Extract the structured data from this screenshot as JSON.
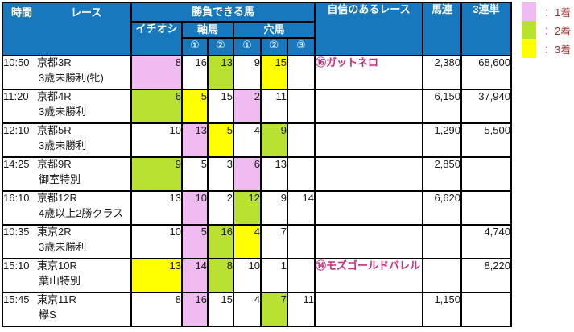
{
  "colors": {
    "header": "#1878BE",
    "first": "#F0BBF0",
    "second": "#B9E132",
    "third": "#FFFF00",
    "conf": "#C5317E",
    "legend": "#953735"
  },
  "header": {
    "time": "時間",
    "race": "レース",
    "winnable": "勝負できる馬",
    "ichioshi": "イチオシ",
    "jiku": "軸馬",
    "ana": "穴馬",
    "c1": "①",
    "c2": "②",
    "c3": "③",
    "confidence": "自信のあるレース",
    "umaren": "馬連",
    "sanrentan": "3連単"
  },
  "legend": {
    "items": [
      {
        "color_key": "first",
        "label": "：1着"
      },
      {
        "color_key": "second",
        "label": "：2着"
      },
      {
        "color_key": "third",
        "label": "：3着"
      }
    ]
  },
  "rows": [
    {
      "time": "10:50",
      "race": "京都3R",
      "condition": "3歳未勝利(牝)",
      "ichioshi": {
        "v": "8",
        "c": "pink"
      },
      "jiku": [
        {
          "v": "16",
          "c": ""
        },
        {
          "v": "13",
          "c": "green"
        }
      ],
      "ana": [
        {
          "v": "9",
          "c": ""
        },
        {
          "v": "15",
          "c": "yellow"
        },
        {
          "v": "",
          "c": ""
        }
      ],
      "confidence": "⑯ガットネロ",
      "umaren": "2,380",
      "sanrentan": "68,600"
    },
    {
      "time": "11:20",
      "race": "京都4R",
      "condition": "3歳未勝利",
      "ichioshi": {
        "v": "6",
        "c": "green"
      },
      "jiku": [
        {
          "v": "5",
          "c": "yellow"
        },
        {
          "v": "15",
          "c": ""
        }
      ],
      "ana": [
        {
          "v": "2",
          "c": "pink"
        },
        {
          "v": "11",
          "c": ""
        },
        {
          "v": "",
          "c": ""
        }
      ],
      "confidence": "",
      "umaren": "6,150",
      "sanrentan": "37,940"
    },
    {
      "time": "12:10",
      "race": "京都5R",
      "condition": "3歳未勝利",
      "ichioshi": {
        "v": "10",
        "c": ""
      },
      "jiku": [
        {
          "v": "13",
          "c": "pink"
        },
        {
          "v": "5",
          "c": "yellow"
        }
      ],
      "ana": [
        {
          "v": "4",
          "c": ""
        },
        {
          "v": "9",
          "c": "green"
        },
        {
          "v": "",
          "c": ""
        }
      ],
      "confidence": "",
      "umaren": "1,290",
      "sanrentan": "5,500"
    },
    {
      "time": "14:25",
      "race": "京都9R",
      "condition": "御室特別",
      "ichioshi": {
        "v": "9",
        "c": "green"
      },
      "jiku": [
        {
          "v": "5",
          "c": ""
        },
        {
          "v": "3",
          "c": ""
        }
      ],
      "ana": [
        {
          "v": "6",
          "c": "pink"
        },
        {
          "v": "13",
          "c": ""
        },
        {
          "v": "",
          "c": ""
        }
      ],
      "confidence": "",
      "umaren": "2,850",
      "sanrentan": ""
    },
    {
      "time": "16:10",
      "race": "京都12R",
      "condition": "4歳以上2勝クラス",
      "ichioshi": {
        "v": "13",
        "c": ""
      },
      "jiku": [
        {
          "v": "10",
          "c": "pink"
        },
        {
          "v": "2",
          "c": ""
        }
      ],
      "ana": [
        {
          "v": "12",
          "c": "green"
        },
        {
          "v": "9",
          "c": ""
        },
        {
          "v": "14",
          "c": ""
        }
      ],
      "confidence": "",
      "umaren": "6,620",
      "sanrentan": ""
    },
    {
      "time": "10:35",
      "race": "東京2R",
      "condition": "3歳未勝利",
      "ichioshi": {
        "v": "10",
        "c": ""
      },
      "jiku": [
        {
          "v": "5",
          "c": "pink"
        },
        {
          "v": "16",
          "c": "green"
        }
      ],
      "ana": [
        {
          "v": "4",
          "c": "yellow"
        },
        {
          "v": "7",
          "c": ""
        },
        {
          "v": "",
          "c": ""
        }
      ],
      "confidence": "",
      "umaren": "",
      "sanrentan": "4,740"
    },
    {
      "time": "15:10",
      "race": "東京10R",
      "condition": "葉山特別",
      "ichioshi": {
        "v": "13",
        "c": "yellow"
      },
      "jiku": [
        {
          "v": "14",
          "c": "pink"
        },
        {
          "v": "8",
          "c": "green"
        }
      ],
      "ana": [
        {
          "v": "10",
          "c": ""
        },
        {
          "v": "1",
          "c": ""
        },
        {
          "v": "",
          "c": ""
        }
      ],
      "confidence": "⑭モズゴールドバレル",
      "umaren": "",
      "sanrentan": "8,220"
    },
    {
      "time": "15:45",
      "race": "東京11R",
      "condition": "欅S",
      "ichioshi": {
        "v": "8",
        "c": ""
      },
      "jiku": [
        {
          "v": "16",
          "c": "pink"
        },
        {
          "v": "15",
          "c": ""
        }
      ],
      "ana": [
        {
          "v": "4",
          "c": ""
        },
        {
          "v": "7",
          "c": "green"
        },
        {
          "v": "11",
          "c": ""
        }
      ],
      "confidence": "",
      "umaren": "1,150",
      "sanrentan": ""
    }
  ]
}
